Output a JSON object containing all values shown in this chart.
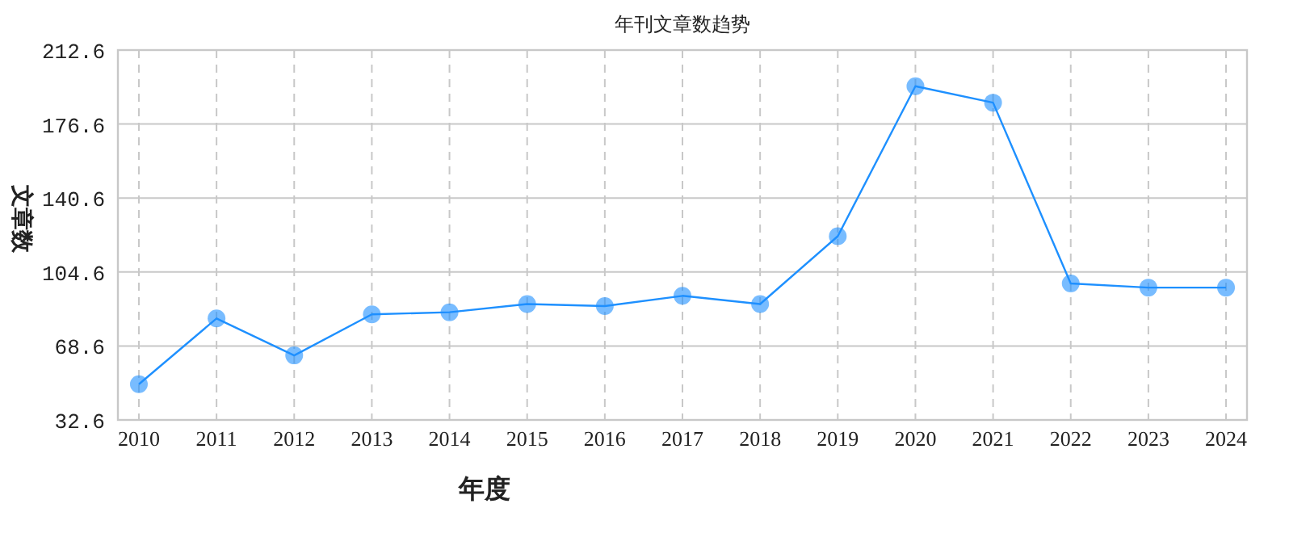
{
  "chart_data": {
    "type": "line",
    "title": "年刊文章数趋势",
    "xlabel": "年度",
    "ylabel": "文章数",
    "categories": [
      "2010",
      "2011",
      "2012",
      "2013",
      "2014",
      "2015",
      "2016",
      "2017",
      "2018",
      "2019",
      "2020",
      "2021",
      "2022",
      "2023",
      "2024"
    ],
    "series": [
      {
        "color": "#1e90ff",
        "values": [
          50,
          82,
          64,
          84,
          85,
          89,
          88,
          93,
          89,
          122,
          195,
          187,
          99,
          97,
          97
        ]
      }
    ],
    "ylim": [
      32.6,
      212.6
    ],
    "yticks": [
      32.6,
      68.6,
      104.6,
      140.6,
      176.6,
      212.6
    ],
    "grid": true,
    "marker": "circle",
    "line_style": "solid"
  }
}
